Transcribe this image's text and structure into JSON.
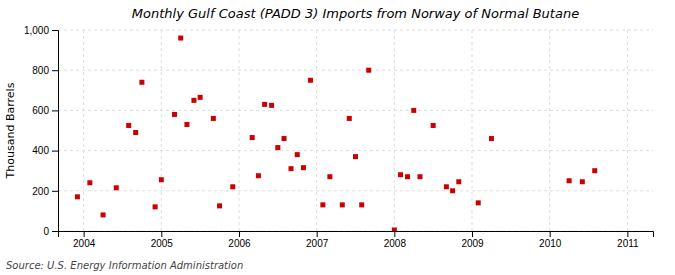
{
  "chart_data": {
    "type": "scatter",
    "title": "Monthly Gulf Coast (PADD 3) Imports from Norway of Normal Butane",
    "ylabel": "Thousand Barrels",
    "source": "Source: U.S. Energy Information Administration",
    "color": "#cc0000",
    "marker": "square",
    "grid": true,
    "xlim": [
      2003.67,
      2011.33
    ],
    "xticks": [
      2004,
      2005,
      2006,
      2007,
      2008,
      2009,
      2010,
      2011
    ],
    "ylim": [
      0,
      1000
    ],
    "yticks": [
      0,
      200,
      400,
      600,
      800,
      {
        "value": 1000,
        "label": "1,000"
      }
    ],
    "x": [
      2003.92,
      2004.08,
      2004.25,
      2004.42,
      2004.58,
      2004.67,
      2004.75,
      2004.92,
      2005.0,
      2005.17,
      2005.25,
      2005.33,
      2005.42,
      2005.5,
      2005.67,
      2005.75,
      2005.92,
      2006.17,
      2006.25,
      2006.33,
      2006.42,
      2006.5,
      2006.58,
      2006.67,
      2006.75,
      2006.83,
      2006.92,
      2007.08,
      2007.17,
      2007.33,
      2007.42,
      2007.5,
      2007.58,
      2007.67,
      2008.0,
      2008.08,
      2008.17,
      2008.25,
      2008.33,
      2008.5,
      2008.67,
      2008.75,
      2008.83,
      2009.08,
      2009.25,
      2010.25,
      2010.42,
      2010.58
    ],
    "values": [
      170,
      240,
      80,
      215,
      525,
      490,
      740,
      120,
      255,
      580,
      960,
      530,
      650,
      665,
      560,
      125,
      220,
      465,
      275,
      630,
      625,
      415,
      460,
      310,
      380,
      315,
      750,
      130,
      270,
      130,
      560,
      370,
      130,
      800,
      5,
      280,
      270,
      600,
      270,
      525,
      220,
      200,
      245,
      140,
      460,
      250,
      245,
      300
    ]
  }
}
